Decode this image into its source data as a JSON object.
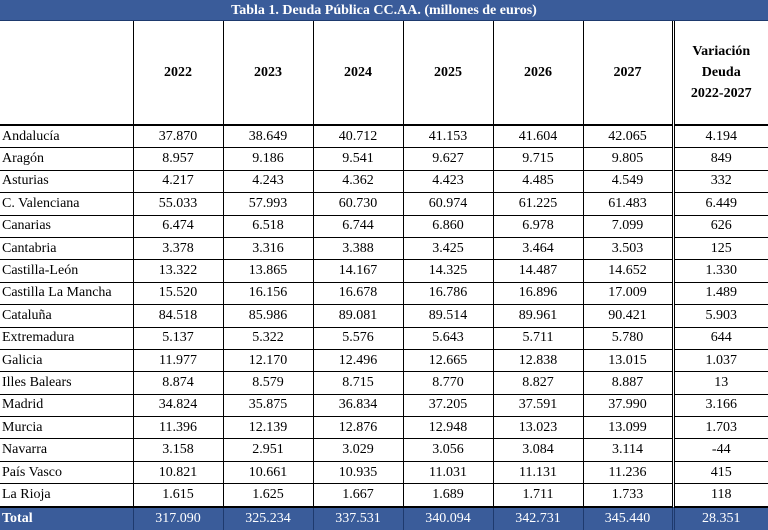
{
  "title": "Tabla 1. Deuda Pública CC.AA. (millones de euros)",
  "columns": {
    "region": "",
    "years": [
      "2022",
      "2023",
      "2024",
      "2025",
      "2026",
      "2027"
    ],
    "variation_lines": [
      "Variación",
      "Deuda",
      "2022-2027"
    ]
  },
  "rows": [
    {
      "name": "Andalucía",
      "values": [
        "37.870",
        "38.649",
        "40.712",
        "41.153",
        "41.604",
        "42.065"
      ],
      "variation": "4.194"
    },
    {
      "name": "Aragón",
      "values": [
        "8.957",
        "9.186",
        "9.541",
        "9.627",
        "9.715",
        "9.805"
      ],
      "variation": "849"
    },
    {
      "name": "Asturias",
      "values": [
        "4.217",
        "4.243",
        "4.362",
        "4.423",
        "4.485",
        "4.549"
      ],
      "variation": "332"
    },
    {
      "name": "C. Valenciana",
      "values": [
        "55.033",
        "57.993",
        "60.730",
        "60.974",
        "61.225",
        "61.483"
      ],
      "variation": "6.449"
    },
    {
      "name": "Canarias",
      "values": [
        "6.474",
        "6.518",
        "6.744",
        "6.860",
        "6.978",
        "7.099"
      ],
      "variation": "626"
    },
    {
      "name": "Cantabria",
      "values": [
        "3.378",
        "3.316",
        "3.388",
        "3.425",
        "3.464",
        "3.503"
      ],
      "variation": "125"
    },
    {
      "name": "Castilla-León",
      "values": [
        "13.322",
        "13.865",
        "14.167",
        "14.325",
        "14.487",
        "14.652"
      ],
      "variation": "1.330"
    },
    {
      "name": "Castilla La Mancha",
      "values": [
        "15.520",
        "16.156",
        "16.678",
        "16.786",
        "16.896",
        "17.009"
      ],
      "variation": "1.489"
    },
    {
      "name": "Cataluña",
      "values": [
        "84.518",
        "85.986",
        "89.081",
        "89.514",
        "89.961",
        "90.421"
      ],
      "variation": "5.903"
    },
    {
      "name": "Extremadura",
      "values": [
        "5.137",
        "5.322",
        "5.576",
        "5.643",
        "5.711",
        "5.780"
      ],
      "variation": "644"
    },
    {
      "name": "Galicia",
      "values": [
        "11.977",
        "12.170",
        "12.496",
        "12.665",
        "12.838",
        "13.015"
      ],
      "variation": "1.037"
    },
    {
      "name": "Illes Balears",
      "values": [
        "8.874",
        "8.579",
        "8.715",
        "8.770",
        "8.827",
        "8.887"
      ],
      "variation": "13"
    },
    {
      "name": "Madrid",
      "values": [
        "34.824",
        "35.875",
        "36.834",
        "37.205",
        "37.591",
        "37.990"
      ],
      "variation": "3.166"
    },
    {
      "name": "Murcia",
      "values": [
        "11.396",
        "12.139",
        "12.876",
        "12.948",
        "13.023",
        "13.099"
      ],
      "variation": "1.703"
    },
    {
      "name": "Navarra",
      "values": [
        "3.158",
        "2.951",
        "3.029",
        "3.056",
        "3.084",
        "3.114"
      ],
      "variation": "-44"
    },
    {
      "name": "País Vasco",
      "values": [
        "10.821",
        "10.661",
        "10.935",
        "11.031",
        "11.131",
        "11.236"
      ],
      "variation": "415"
    },
    {
      "name": "La Rioja",
      "values": [
        "1.615",
        "1.625",
        "1.667",
        "1.689",
        "1.711",
        "1.733"
      ],
      "variation": "118"
    }
  ],
  "total": {
    "name": "Total",
    "values": [
      "317.090",
      "325.234",
      "337.531",
      "340.094",
      "342.731",
      "345.440"
    ],
    "variation": "28.351"
  },
  "colors": {
    "header_fill": "#3a5c9a",
    "header_text": "#ffffff"
  }
}
